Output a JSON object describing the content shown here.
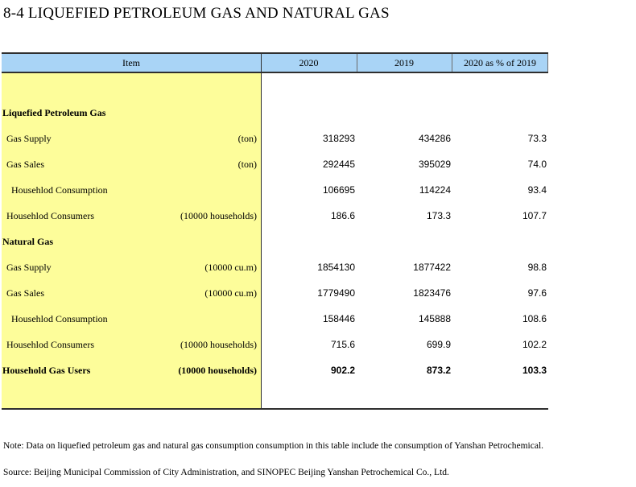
{
  "title": "8-4  LIQUEFIED PETROLEUM GAS AND NATURAL GAS",
  "header": {
    "item": "Item",
    "col1": "2020",
    "col2": "2019",
    "col3": "2020 as % of 2019"
  },
  "rows": [
    {
      "label": "Liquefied Petroleum Gas",
      "unit": "",
      "v2020": "",
      "v2019": "",
      "pct": ""
    },
    {
      "label": "Gas Supply",
      "unit": "(ton)",
      "v2020": "318293",
      "v2019": "434286",
      "pct": "73.3"
    },
    {
      "label": "Gas Sales",
      "unit": "(ton)",
      "v2020": "292445",
      "v2019": "395029",
      "pct": "74.0"
    },
    {
      "label": "Househlod Consumption",
      "unit": "",
      "v2020": "106695",
      "v2019": "114224",
      "pct": "93.4"
    },
    {
      "label": "Househlod Consumers",
      "unit": "(10000 households)",
      "v2020": "186.6",
      "v2019": "173.3",
      "pct": "107.7"
    },
    {
      "label": "Natural Gas",
      "unit": "",
      "v2020": "",
      "v2019": "",
      "pct": ""
    },
    {
      "label": "Gas Supply",
      "unit": "(10000 cu.m)",
      "v2020": "1854130",
      "v2019": "1877422",
      "pct": "98.8"
    },
    {
      "label": "Gas Sales",
      "unit": "(10000 cu.m)",
      "v2020": "1779490",
      "v2019": "1823476",
      "pct": "97.6"
    },
    {
      "label": "Househlod Consumption",
      "unit": "",
      "v2020": "158446",
      "v2019": "145888",
      "pct": "108.6"
    },
    {
      "label": "Househlod Consumers",
      "unit": "(10000 households)",
      "v2020": "715.6",
      "v2019": "699.9",
      "pct": "102.2"
    },
    {
      "label": "Household Gas Users",
      "unit": "(10000 households)",
      "v2020": "902.2",
      "v2019": "873.2",
      "pct": "103.3"
    }
  ],
  "note": "Note: Data on liquefied petroleum gas and natural gas consumption consumption in this table include the consumption of Yanshan Petrochemical.",
  "source": "Source: Beijing Municipal Commission of City Administration, and SINOPEC Beijing Yanshan Petrochemical Co., Ltd.",
  "colors": {
    "header_bg": "#a9d4f6",
    "item_column_bg": "#fdfd9a",
    "rule": "#2f2f2f"
  }
}
